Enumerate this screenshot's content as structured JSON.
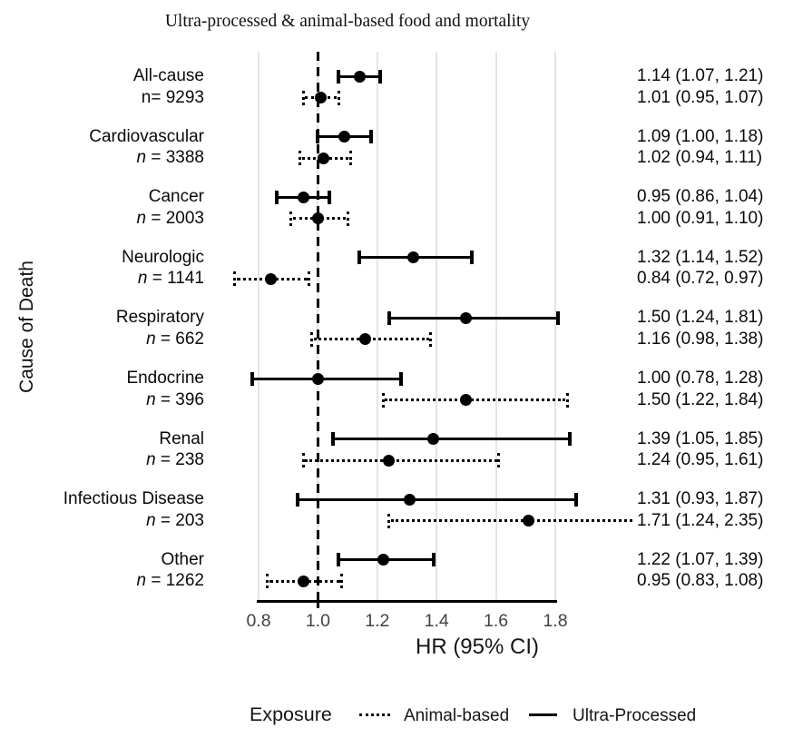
{
  "title": "Ultra-processed & animal-based food and mortality",
  "y_axis_label": "Cause of Death",
  "x_axis_label": "HR (95% CI)",
  "x_tick_labels": [
    "0.8",
    "1.0",
    "1.2",
    "1.4",
    "1.6",
    "1.8"
  ],
  "legend": {
    "title": "Exposure",
    "items": [
      {
        "label": "Animal-based",
        "line_style": "dotted"
      },
      {
        "label": "Ultra-Processed",
        "line_style": "solid"
      }
    ]
  },
  "colors": {
    "marker": "#000000",
    "gridline": "#e4e4e4",
    "tick_text": "#424242"
  },
  "chart_data": {
    "type": "forest",
    "title": "Ultra-processed & animal-based food and mortality",
    "xlabel": "HR (95% CI)",
    "ylabel": "Cause of Death",
    "x_ticks": [
      0.8,
      1.0,
      1.2,
      1.4,
      1.6,
      1.8
    ],
    "x_axis_range": [
      0.8,
      1.8
    ],
    "reference_line": 1.0,
    "grid": true,
    "legend_position": "bottom",
    "series_styles": {
      "ultra_processed": "solid",
      "animal_based": "dotted"
    },
    "rows": [
      {
        "cause": "All-cause",
        "n_label": "n= 9293",
        "n": 9293,
        "n_italic": false,
        "ultra_processed": {
          "hr": 1.14,
          "ci_low": 1.07,
          "ci_high": 1.21,
          "label": "1.14 (1.07, 1.21)"
        },
        "animal_based": {
          "hr": 1.01,
          "ci_low": 0.95,
          "ci_high": 1.07,
          "label": "1.01 (0.95, 1.07)"
        }
      },
      {
        "cause": "Cardiovascular",
        "n_label": "n = 3388",
        "n": 3388,
        "n_italic": true,
        "ultra_processed": {
          "hr": 1.09,
          "ci_low": 1.0,
          "ci_high": 1.18,
          "label": "1.09 (1.00, 1.18)"
        },
        "animal_based": {
          "hr": 1.02,
          "ci_low": 0.94,
          "ci_high": 1.11,
          "label": "1.02 (0.94, 1.11)"
        }
      },
      {
        "cause": "Cancer",
        "n_label": "n = 2003",
        "n": 2003,
        "n_italic": true,
        "ultra_processed": {
          "hr": 0.95,
          "ci_low": 0.86,
          "ci_high": 1.04,
          "label": "0.95 (0.86, 1.04)"
        },
        "animal_based": {
          "hr": 1.0,
          "ci_low": 0.91,
          "ci_high": 1.1,
          "label": "1.00 (0.91, 1.10)"
        }
      },
      {
        "cause": "Neurologic",
        "n_label": "n = 1141",
        "n": 1141,
        "n_italic": true,
        "ultra_processed": {
          "hr": 1.32,
          "ci_low": 1.14,
          "ci_high": 1.52,
          "label": "1.32 (1.14, 1.52)"
        },
        "animal_based": {
          "hr": 0.84,
          "ci_low": 0.72,
          "ci_high": 0.97,
          "label": "0.84 (0.72, 0.97)"
        }
      },
      {
        "cause": "Respiratory",
        "n_label": "n = 662",
        "n": 662,
        "n_italic": true,
        "ultra_processed": {
          "hr": 1.5,
          "ci_low": 1.24,
          "ci_high": 1.81,
          "label": "1.50 (1.24, 1.81)"
        },
        "animal_based": {
          "hr": 1.16,
          "ci_low": 0.98,
          "ci_high": 1.38,
          "label": "1.16 (0.98, 1.38)"
        }
      },
      {
        "cause": "Endocrine",
        "n_label": "n = 396",
        "n": 396,
        "n_italic": true,
        "ultra_processed": {
          "hr": 1.0,
          "ci_low": 0.78,
          "ci_high": 1.28,
          "label": "1.00 (0.78, 1.28)"
        },
        "animal_based": {
          "hr": 1.5,
          "ci_low": 1.22,
          "ci_high": 1.84,
          "label": "1.50 (1.22, 1.84)"
        }
      },
      {
        "cause": "Renal",
        "n_label": "n = 238",
        "n": 238,
        "n_italic": true,
        "ultra_processed": {
          "hr": 1.39,
          "ci_low": 1.05,
          "ci_high": 1.85,
          "label": "1.39 (1.05, 1.85)"
        },
        "animal_based": {
          "hr": 1.24,
          "ci_low": 0.95,
          "ci_high": 1.61,
          "label": "1.24 (0.95, 1.61)"
        }
      },
      {
        "cause": "Infectious Disease",
        "n_label": "n = 203",
        "n": 203,
        "n_italic": true,
        "ultra_processed": {
          "hr": 1.31,
          "ci_low": 0.93,
          "ci_high": 1.87,
          "label": "1.31 (0.93, 1.87)"
        },
        "animal_based": {
          "hr": 1.71,
          "ci_low": 1.24,
          "ci_high": 2.35,
          "label": "1.71 (1.24, 2.35)"
        }
      },
      {
        "cause": "Other",
        "n_label": "n = 1262",
        "n": 1262,
        "n_italic": true,
        "ultra_processed": {
          "hr": 1.22,
          "ci_low": 1.07,
          "ci_high": 1.39,
          "label": "1.22 (1.07, 1.39)"
        },
        "animal_based": {
          "hr": 0.95,
          "ci_low": 0.83,
          "ci_high": 1.08,
          "label": "0.95 (0.83, 1.08)"
        }
      }
    ]
  }
}
